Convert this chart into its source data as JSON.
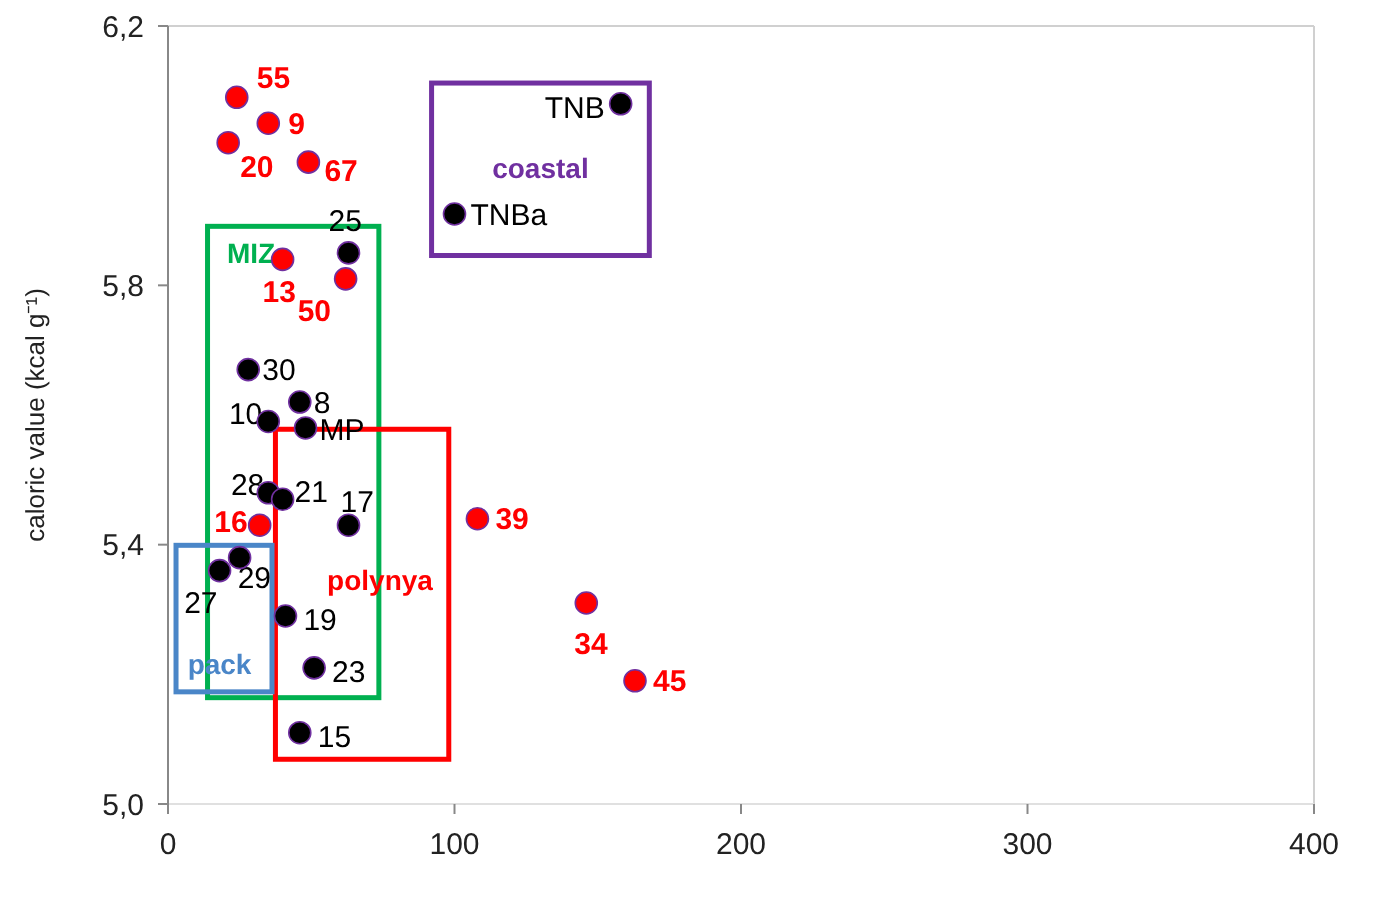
{
  "chart_data": {
    "type": "scatter",
    "ylabel": "caloric value (kcal g⁻¹)",
    "xlim": [
      0,
      400
    ],
    "xticks": [
      0,
      100,
      200,
      300,
      400
    ],
    "ylim": [
      5.0,
      6.2
    ],
    "yticks": [
      {
        "value": 5.0,
        "label": "5,0"
      },
      {
        "value": 5.4,
        "label": "5,4"
      },
      {
        "value": 5.8,
        "label": "5,8"
      },
      {
        "value": 6.2,
        "label": "6,2"
      }
    ],
    "marker": "circle",
    "series": [
      {
        "color": "#ff0000",
        "x": [
          24,
          35,
          21,
          49,
          40,
          62,
          32,
          108,
          146,
          163
        ],
        "values": [
          6.09,
          6.05,
          6.02,
          5.99,
          5.84,
          5.81,
          5.43,
          5.44,
          5.31,
          5.19
        ]
      },
      {
        "color": "#000000",
        "x": [
          158,
          100,
          63,
          28,
          46,
          35,
          48,
          35,
          40,
          63,
          25,
          18,
          41,
          51,
          46
        ],
        "values": [
          6.08,
          5.91,
          5.85,
          5.67,
          5.62,
          5.59,
          5.58,
          5.48,
          5.47,
          5.43,
          5.38,
          5.36,
          5.29,
          5.21,
          5.11
        ]
      }
    ],
    "annotations": [
      "coastal",
      "MIZ",
      "polynya",
      "pack",
      {
        "text": "55",
        "x": 24,
        "y": 6.09
      },
      {
        "text": "9",
        "x": 35,
        "y": 6.05
      },
      {
        "text": "20",
        "x": 21,
        "y": 6.02
      },
      {
        "text": "67",
        "x": 49,
        "y": 5.99
      },
      {
        "text": "13",
        "x": 40,
        "y": 5.84
      },
      {
        "text": "50",
        "x": 62,
        "y": 5.81
      },
      {
        "text": "16",
        "x": 32,
        "y": 5.43
      },
      {
        "text": "39",
        "x": 108,
        "y": 5.44
      },
      {
        "text": "34",
        "x": 146,
        "y": 5.31
      },
      {
        "text": "45",
        "x": 163,
        "y": 5.19
      },
      {
        "text": "TNB",
        "x": 158,
        "y": 6.08
      },
      {
        "text": "TNBa",
        "x": 100,
        "y": 5.91
      },
      {
        "text": "25",
        "x": 63,
        "y": 5.85
      },
      {
        "text": "30",
        "x": 28,
        "y": 5.67
      },
      {
        "text": "8",
        "x": 46,
        "y": 5.62
      },
      {
        "text": "10",
        "x": 35,
        "y": 5.59
      },
      {
        "text": "MP",
        "x": 48,
        "y": 5.58
      },
      {
        "text": "28",
        "x": 35,
        "y": 5.48
      },
      {
        "text": "21",
        "x": 40,
        "y": 5.47
      },
      {
        "text": "17",
        "x": 63,
        "y": 5.43
      },
      {
        "text": "29",
        "x": 25,
        "y": 5.38
      },
      {
        "text": "27",
        "x": 18,
        "y": 5.36
      },
      {
        "text": "19",
        "x": 41,
        "y": 5.29
      },
      {
        "text": "23",
        "x": 51,
        "y": 5.21
      },
      {
        "text": "15",
        "x": 46,
        "y": 5.11
      }
    ]
  }
}
